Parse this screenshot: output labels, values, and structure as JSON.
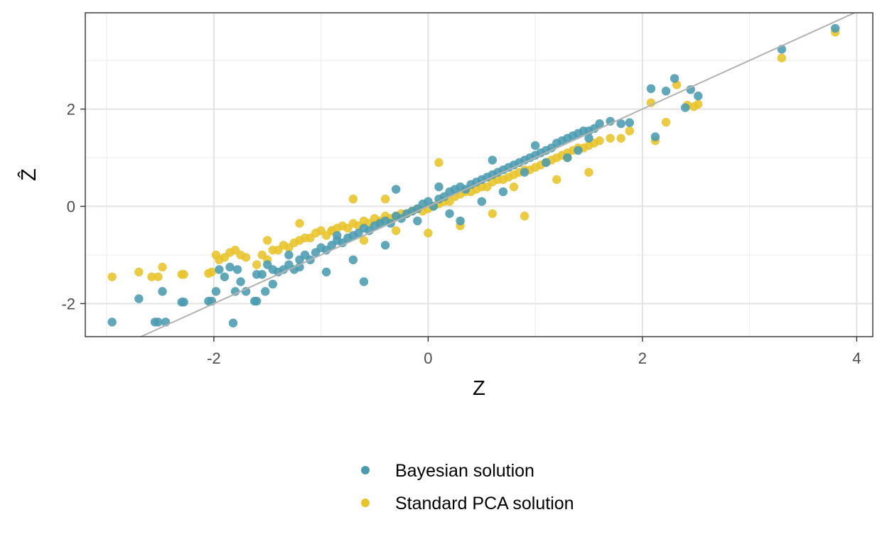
{
  "chart_data": {
    "type": "scatter",
    "xlabel": "Z",
    "ylabel": "Ẑ",
    "xlim": [
      -3.2,
      4.15
    ],
    "ylim": [
      -2.68,
      3.98
    ],
    "x_ticks": [
      -2,
      0,
      2,
      4
    ],
    "x_tick_labels": [
      "-2",
      "0",
      "2",
      "4"
    ],
    "y_ticks": [
      -2,
      0,
      2
    ],
    "y_tick_labels": [
      "-2",
      "0",
      "2"
    ],
    "grid": true,
    "reference_line": {
      "slope": 1,
      "intercept": 0,
      "color": "#b3b3b3"
    },
    "legend_position": "bottom",
    "series": [
      {
        "name": "Bayesian solution",
        "color": "#4a9bb0",
        "x": [
          -2.95,
          -2.7,
          -2.55,
          -2.52,
          -2.48,
          -2.45,
          -2.3,
          -2.28,
          -2.05,
          -2.02,
          -1.98,
          -1.95,
          -1.9,
          -1.85,
          -1.8,
          -1.78,
          -1.75,
          -1.7,
          -1.62,
          -1.6,
          -1.55,
          -1.52,
          -1.5,
          -1.45,
          -1.4,
          -1.35,
          -1.3,
          -1.25,
          -1.2,
          -1.15,
          -1.1,
          -1.05,
          -1.0,
          -0.95,
          -0.9,
          -0.85,
          -0.8,
          -0.75,
          -0.7,
          -0.65,
          -0.6,
          -0.55,
          -0.5,
          -0.45,
          -0.4,
          -0.35,
          -0.3,
          -0.25,
          -0.2,
          -0.15,
          -0.1,
          -0.05,
          0.0,
          0.05,
          0.1,
          0.15,
          0.2,
          0.25,
          0.3,
          0.35,
          0.4,
          0.45,
          0.5,
          0.55,
          0.6,
          0.65,
          0.7,
          0.75,
          0.8,
          0.85,
          0.9,
          0.95,
          1.0,
          1.05,
          1.1,
          1.15,
          1.2,
          1.25,
          1.3,
          1.35,
          1.4,
          1.45,
          1.5,
          1.55,
          1.6,
          1.7,
          1.8,
          1.88,
          2.08,
          2.12,
          2.22,
          2.3,
          2.4,
          2.45,
          2.52,
          3.3,
          3.8,
          -1.6,
          -1.45,
          -1.2,
          -0.95,
          -0.7,
          -0.6,
          -0.4,
          -0.1,
          0.1,
          0.3,
          0.5,
          0.7,
          0.9,
          1.1,
          1.3,
          1.5,
          -1.3,
          -0.85,
          -0.3,
          0.2,
          0.6,
          1.0,
          1.4,
          -1.82
        ],
        "y": [
          -2.38,
          -1.9,
          -2.38,
          -2.38,
          -1.75,
          -2.38,
          -1.97,
          -1.97,
          -1.95,
          -1.95,
          -1.75,
          -1.3,
          -1.45,
          -1.25,
          -1.75,
          -1.3,
          -1.55,
          -1.75,
          -1.95,
          -1.95,
          -1.4,
          -1.75,
          -1.2,
          -1.3,
          -1.35,
          -1.3,
          -1.2,
          -1.3,
          -1.1,
          -1.0,
          -1.1,
          -0.95,
          -0.85,
          -0.9,
          -0.8,
          -0.7,
          -0.75,
          -0.65,
          -0.6,
          -0.55,
          -0.45,
          -0.5,
          -0.4,
          -0.35,
          -0.3,
          -0.35,
          -0.2,
          -0.25,
          -0.15,
          -0.1,
          -0.05,
          0.05,
          0.1,
          0.0,
          0.15,
          0.2,
          0.3,
          0.35,
          0.4,
          0.35,
          0.45,
          0.5,
          0.55,
          0.6,
          0.65,
          0.7,
          0.75,
          0.8,
          0.85,
          0.9,
          0.95,
          1.0,
          1.05,
          1.1,
          1.15,
          1.2,
          1.3,
          1.35,
          1.4,
          1.45,
          1.5,
          1.55,
          1.55,
          1.6,
          1.7,
          1.75,
          1.7,
          1.72,
          2.42,
          1.43,
          2.37,
          2.63,
          2.03,
          2.4,
          2.27,
          3.23,
          3.66,
          -1.4,
          -1.6,
          -1.25,
          -1.35,
          -1.1,
          -1.55,
          -0.8,
          -0.3,
          0.4,
          -0.3,
          0.1,
          0.3,
          0.7,
          0.9,
          1.0,
          1.4,
          -1.0,
          -0.6,
          0.35,
          -0.15,
          0.95,
          1.25,
          1.15,
          -2.4
        ]
      },
      {
        "name": "Standard PCA solution",
        "color": "#e8c32a",
        "x": [
          -2.95,
          -2.7,
          -2.58,
          -2.52,
          -2.48,
          -2.3,
          -2.28,
          -2.05,
          -2.02,
          -1.98,
          -1.95,
          -1.9,
          -1.85,
          -1.8,
          -1.75,
          -1.7,
          -1.6,
          -1.55,
          -1.5,
          -1.45,
          -1.4,
          -1.35,
          -1.3,
          -1.25,
          -1.2,
          -1.15,
          -1.1,
          -1.05,
          -1.0,
          -0.95,
          -0.9,
          -0.85,
          -0.8,
          -0.75,
          -0.7,
          -0.65,
          -0.6,
          -0.55,
          -0.5,
          -0.45,
          -0.4,
          -0.35,
          -0.3,
          -0.25,
          -0.2,
          -0.15,
          -0.1,
          -0.05,
          0.0,
          0.05,
          0.1,
          0.15,
          0.2,
          0.25,
          0.3,
          0.35,
          0.4,
          0.45,
          0.5,
          0.55,
          0.6,
          0.65,
          0.7,
          0.75,
          0.8,
          0.85,
          0.9,
          0.95,
          1.0,
          1.05,
          1.1,
          1.15,
          1.2,
          1.25,
          1.3,
          1.35,
          1.4,
          1.45,
          1.5,
          1.55,
          1.6,
          1.7,
          1.8,
          1.88,
          2.08,
          2.12,
          2.22,
          2.32,
          2.42,
          2.48,
          2.52,
          3.3,
          3.8,
          -1.2,
          -0.9,
          -0.6,
          -0.3,
          0.0,
          0.3,
          0.6,
          0.9,
          1.2,
          1.5,
          -1.5,
          -0.7,
          0.1,
          0.8,
          1.3,
          -0.4
        ],
        "y": [
          -1.45,
          -1.35,
          -1.45,
          -1.45,
          -1.25,
          -1.4,
          -1.4,
          -1.38,
          -1.35,
          -1.0,
          -1.1,
          -1.05,
          -0.95,
          -0.9,
          -1.0,
          -1.05,
          -1.2,
          -1.0,
          -1.1,
          -0.9,
          -0.9,
          -0.8,
          -0.85,
          -0.75,
          -0.7,
          -0.65,
          -0.65,
          -0.55,
          -0.5,
          -0.6,
          -0.5,
          -0.45,
          -0.4,
          -0.45,
          -0.35,
          -0.4,
          -0.3,
          -0.35,
          -0.25,
          -0.3,
          -0.2,
          -0.25,
          -0.2,
          -0.15,
          -0.15,
          -0.1,
          -0.05,
          -0.1,
          -0.05,
          0.0,
          0.05,
          0.1,
          0.1,
          0.2,
          0.25,
          0.3,
          0.3,
          0.35,
          0.4,
          0.4,
          0.5,
          0.55,
          0.55,
          0.6,
          0.65,
          0.7,
          0.75,
          0.75,
          0.8,
          0.85,
          0.9,
          0.95,
          1.0,
          1.05,
          1.1,
          1.15,
          1.2,
          1.2,
          1.25,
          1.3,
          1.35,
          1.4,
          1.4,
          1.55,
          2.13,
          1.35,
          1.73,
          2.5,
          2.08,
          2.05,
          2.1,
          3.05,
          3.58,
          -0.35,
          -0.5,
          -0.7,
          -0.5,
          -0.55,
          -0.4,
          -0.15,
          -0.2,
          0.55,
          0.7,
          -0.7,
          0.15,
          0.9,
          0.4,
          1.0,
          0.15
        ]
      }
    ]
  }
}
